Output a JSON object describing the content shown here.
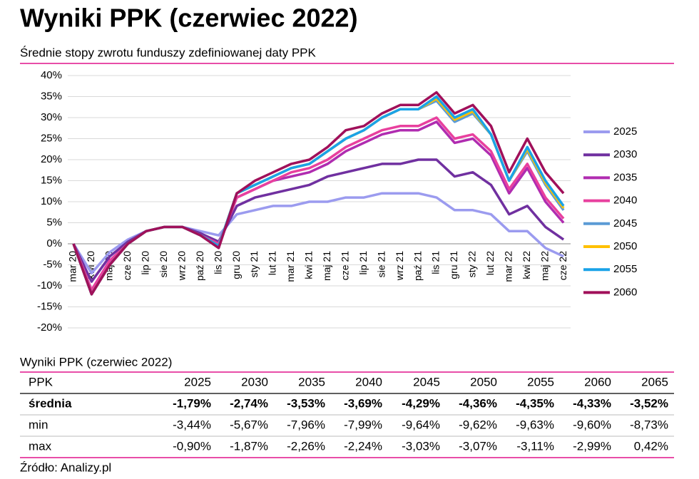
{
  "title": "Wyniki PPK (czerwiec 2022)",
  "chart_data": {
    "type": "line",
    "title": "Średnie stopy zwrotu funduszy zdefiniowanej daty PPK",
    "categories": [
      "mar 20",
      "kwi 20",
      "maj 20",
      "cze 20",
      "lip 20",
      "sie 20",
      "wrz 20",
      "paź 20",
      "lis 20",
      "gru 20",
      "sty 21",
      "lut 21",
      "mar 21",
      "kwi 21",
      "maj 21",
      "cze 21",
      "lip 21",
      "sie 21",
      "wrz 21",
      "paź 21",
      "lis 21",
      "gru 21",
      "sty 22",
      "lut 22",
      "mar 22",
      "kwi 22",
      "maj 22",
      "cze 22"
    ],
    "series": [
      {
        "name": "2025",
        "color": "#9b9bef",
        "values": [
          0,
          -7,
          -2,
          1,
          3,
          4,
          4,
          3,
          2,
          7,
          8,
          9,
          9,
          10,
          10,
          11,
          11,
          12,
          12,
          12,
          11,
          8,
          8,
          7,
          3,
          3,
          -1,
          -3
        ]
      },
      {
        "name": "2030",
        "color": "#7030a0",
        "values": [
          0,
          -9,
          -3,
          0.5,
          3,
          4,
          4,
          2.5,
          0.5,
          9,
          11,
          12,
          13,
          14,
          16,
          17,
          18,
          19,
          19,
          20,
          20,
          16,
          17,
          14,
          7,
          9,
          4,
          1
        ]
      },
      {
        "name": "2035",
        "color": "#b02cb0",
        "values": [
          0,
          -11,
          -4,
          0,
          3,
          4,
          4,
          2,
          0,
          11,
          13,
          15,
          16,
          17,
          19,
          22,
          24,
          26,
          27,
          27,
          29,
          24,
          25,
          21,
          12,
          18,
          10,
          5
        ]
      },
      {
        "name": "2040",
        "color": "#e8409e",
        "values": [
          0,
          -11,
          -4,
          0,
          3,
          4,
          4,
          2,
          0,
          11,
          13,
          15,
          17,
          18,
          20,
          23,
          25,
          27,
          28,
          28,
          30,
          25,
          26,
          22,
          13,
          19,
          11,
          6
        ]
      },
      {
        "name": "2045",
        "color": "#5b9bd5",
        "values": [
          0,
          -12,
          -5,
          0,
          3,
          4,
          4,
          2,
          -0.5,
          12,
          14,
          16,
          18,
          19,
          22,
          25,
          27,
          30,
          32,
          32,
          34,
          29,
          31,
          26,
          15,
          22,
          14,
          8
        ]
      },
      {
        "name": "2050",
        "color": "#ffc000",
        "values": [
          0,
          -12,
          -5,
          0,
          3,
          4,
          4,
          2,
          -0.5,
          12,
          14,
          16,
          18,
          19,
          22,
          25,
          27,
          30,
          32,
          32,
          34.5,
          29.5,
          31.5,
          26,
          15,
          22.5,
          14.5,
          8.5
        ]
      },
      {
        "name": "2055",
        "color": "#1aa3e8",
        "values": [
          0,
          -12,
          -5,
          0,
          3,
          4,
          4,
          2,
          -0.5,
          12,
          14,
          16,
          18,
          19,
          22,
          25,
          27,
          30,
          32,
          32,
          35,
          30,
          32,
          26,
          15,
          23,
          15,
          9
        ]
      },
      {
        "name": "2060",
        "color": "#a0105a",
        "values": [
          0,
          -12,
          -5,
          0,
          3,
          4,
          4,
          2,
          -1,
          12,
          15,
          17,
          19,
          20,
          23,
          27,
          28,
          31,
          33,
          33,
          36,
          31,
          33,
          28,
          17,
          25,
          17,
          12
        ]
      }
    ],
    "ylim": [
      -20,
      40
    ],
    "yticks": [
      {
        "value": -20,
        "label": "-20%"
      },
      {
        "value": -15,
        "label": "-15%"
      },
      {
        "value": -10,
        "label": "-10%"
      },
      {
        "value": -5,
        "label": "-5%"
      },
      {
        "value": 0,
        "label": "0%"
      },
      {
        "value": 5,
        "label": "5%"
      },
      {
        "value": 10,
        "label": "10%"
      },
      {
        "value": 15,
        "label": "15%"
      },
      {
        "value": 20,
        "label": "20%"
      },
      {
        "value": 25,
        "label": "25%"
      },
      {
        "value": 30,
        "label": "30%"
      },
      {
        "value": 35,
        "label": "35%"
      },
      {
        "value": 40,
        "label": "40%"
      }
    ],
    "grid": true,
    "legend": "right"
  },
  "table": {
    "title": "Wyniki PPK (czerwiec 2022)",
    "header": [
      "PPK",
      "2025",
      "2030",
      "2035",
      "2040",
      "2045",
      "2050",
      "2055",
      "2060",
      "2065"
    ],
    "rows": [
      [
        "średnia",
        "-1,79%",
        "-2,74%",
        "-3,53%",
        "-3,69%",
        "-4,29%",
        "-4,36%",
        "-4,35%",
        "-4,33%",
        "-3,52%"
      ],
      [
        "min",
        "-3,44%",
        "-5,67%",
        "-7,96%",
        "-7,99%",
        "-9,64%",
        "-9,62%",
        "-9,63%",
        "-9,60%",
        "-8,73%"
      ],
      [
        "max",
        "-0,90%",
        "-1,87%",
        "-2,26%",
        "-2,24%",
        "-3,03%",
        "-3,07%",
        "-3,11%",
        "-2,99%",
        "0,42%"
      ]
    ]
  },
  "source": "Źródło: Analizy.pl"
}
